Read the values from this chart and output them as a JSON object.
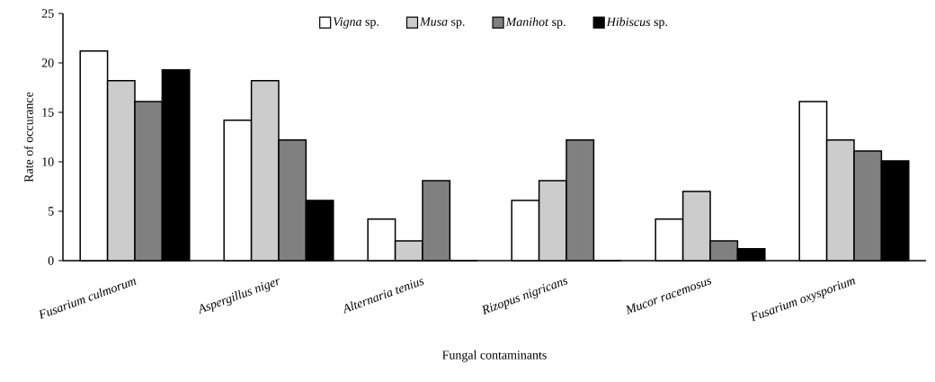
{
  "chart_data": {
    "type": "bar",
    "xlabel": "Fungal contaminants",
    "ylabel": "Rate of occurance",
    "categories": [
      "Fusarium culmorum",
      "Aspergillus niger",
      "Alternaria tenius",
      "Rizopus nigricans",
      "Mucor racemosus",
      "Fusarium oxysporium"
    ],
    "series": [
      {
        "name": "*Vigna* sp.",
        "color": "#ffffff",
        "values": [
          21.2,
          14.2,
          4.2,
          6.1,
          4.2,
          16.1
        ]
      },
      {
        "name": "*Musa* sp.",
        "color": "#cccccc",
        "values": [
          18.2,
          18.2,
          2,
          8.1,
          7,
          12.2
        ]
      },
      {
        "name": "*Manihot* sp.",
        "color": "#808080",
        "values": [
          16.1,
          12.2,
          8.1,
          12.2,
          2,
          11.1
        ]
      },
      {
        "name": "*Hibiscus* sp.",
        "color": "#000000",
        "values": [
          19.3,
          6.1,
          0,
          0,
          1.2,
          10.1
        ]
      }
    ],
    "ylim": [
      0,
      25
    ],
    "yticks": [
      0,
      5,
      10,
      15,
      20,
      25
    ],
    "legend": "top"
  }
}
